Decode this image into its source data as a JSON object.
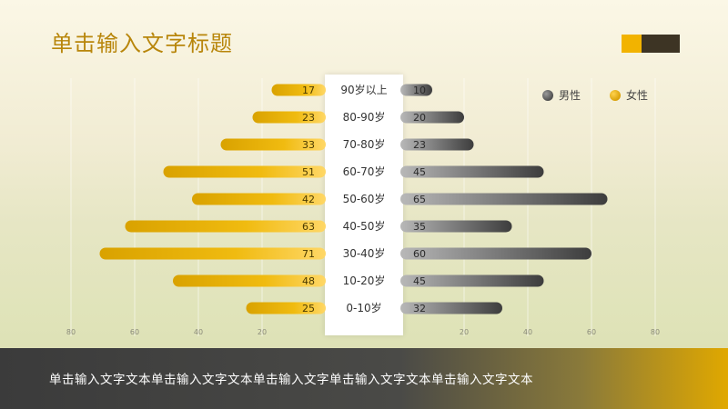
{
  "page": {
    "title": "单击输入文字标题",
    "footer_text": "单击输入文字文本单击输入文字文本单击输入文字单击输入文字文本单击输入文字文本",
    "colors": {
      "female": "#e8b100",
      "male": "#6a6a6a",
      "title": "#b8860b"
    }
  },
  "chart_data": {
    "type": "bar",
    "categories": [
      "90岁以上",
      "80-90岁",
      "70-80岁",
      "60-70岁",
      "50-60岁",
      "40-50岁",
      "30-40岁",
      "10-20岁",
      "0-10岁"
    ],
    "series": [
      {
        "name": "男性",
        "values": [
          10,
          20,
          23,
          45,
          65,
          35,
          60,
          45,
          32
        ],
        "color": "#6a6a6a"
      },
      {
        "name": "女性",
        "values": [
          17,
          23,
          33,
          51,
          42,
          63,
          71,
          48,
          25
        ],
        "color": "#e8b100"
      }
    ],
    "x_ticks_left": [
      "80",
      "60",
      "40",
      "20"
    ],
    "x_ticks_right": [
      "20",
      "40",
      "60",
      "80"
    ],
    "xlim": [
      0,
      80
    ],
    "legend": [
      "男性",
      "女性"
    ],
    "legend_position": "top-right",
    "grid": true
  }
}
